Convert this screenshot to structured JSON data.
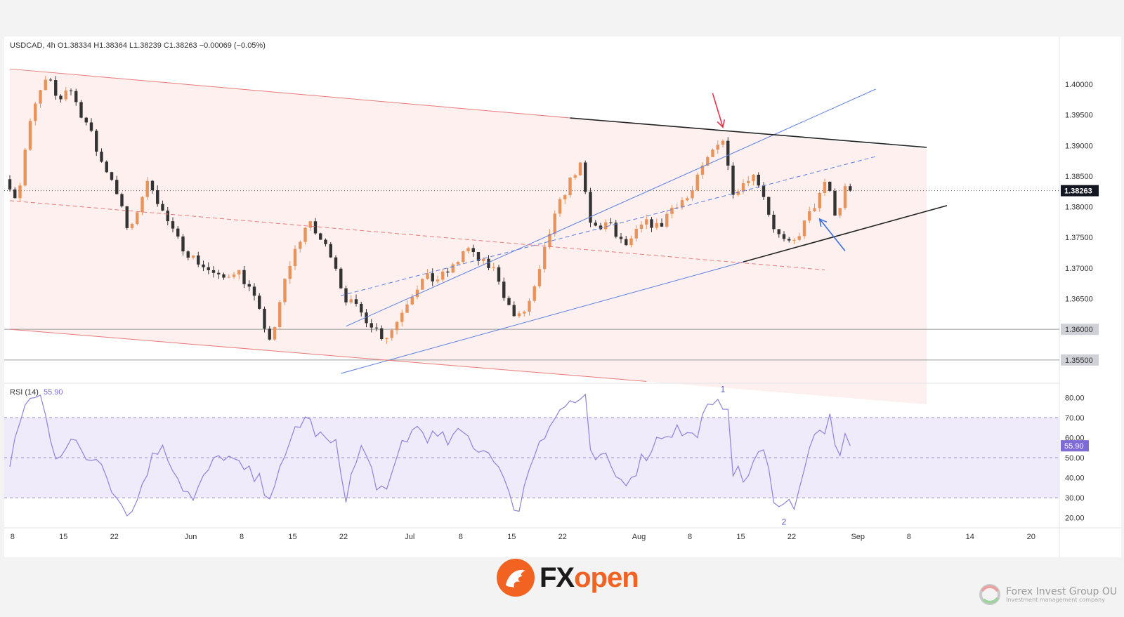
{
  "symbol_header": "USDCAD, 4h  O1.38334  H1.38364  L1.38239  C1.38263  −0.00069 (−0.05%)",
  "rsi_header": {
    "label": "RSI (14)",
    "value": "55.90"
  },
  "last_price_label": "1.38263",
  "rsi_value_label": "55.90",
  "wave_labels": [
    "1",
    "2"
  ],
  "brand": {
    "name_fx": "FX",
    "name_open": "open",
    "accent": "#f26322"
  },
  "watermark": {
    "name": "Forex Invest Group OU",
    "subtitle": "Investment management company"
  },
  "colors": {
    "up": "#e8935a",
    "down": "#333333",
    "channel": "#5b7ee0",
    "trend": "#222222",
    "downtrend": "#e87a7a",
    "rsi": "#8f82d9",
    "price_tag": "#131722",
    "rsi_tag": "#7e6bd6",
    "red_arrow": "#e8334a",
    "blue_arrow": "#3a6fe0"
  },
  "chart_data": [
    {
      "type": "candlestick",
      "symbol": "USDCAD",
      "timeframe": "4h",
      "ohlc_last": {
        "open": 1.38334,
        "high": 1.38364,
        "low": 1.38239,
        "close": 1.38263,
        "change": -0.00069,
        "change_pct": -0.05
      },
      "x_ticks": [
        "8",
        "15",
        "22",
        "Jun",
        "8",
        "15",
        "22",
        "Jul",
        "8",
        "15",
        "22",
        "Aug",
        "8",
        "15",
        "22",
        "Sep",
        "8",
        "14",
        "20"
      ],
      "y_ticks": [
        "1.40000",
        "1.39500",
        "1.39000",
        "1.38500",
        "1.38000",
        "1.37500",
        "1.37000",
        "1.36500",
        "1.36000",
        "1.35500"
      ],
      "ylim": [
        1.3512,
        1.4055
      ],
      "horizontal_levels": [
        {
          "value": 1.36,
          "label": "1.36000"
        },
        {
          "value": 1.355,
          "label": "1.35500"
        }
      ],
      "price_path": [
        [
          0,
          1.3845
        ],
        [
          2,
          1.381
        ],
        [
          4,
          1.392
        ],
        [
          6,
          1.398
        ],
        [
          8,
          1.401
        ],
        [
          10,
          1.397
        ],
        [
          12,
          1.4
        ],
        [
          14,
          1.396
        ],
        [
          16,
          1.393
        ],
        [
          18,
          1.388
        ],
        [
          21,
          1.384
        ],
        [
          24,
          1.375
        ],
        [
          26,
          1.381
        ],
        [
          28,
          1.3845
        ],
        [
          30,
          1.38
        ],
        [
          33,
          1.375
        ],
        [
          36,
          1.372
        ],
        [
          39,
          1.37
        ],
        [
          42,
          1.368
        ],
        [
          45,
          1.37
        ],
        [
          48,
          1.366
        ],
        [
          50,
          1.3615
        ],
        [
          52,
          1.3575
        ],
        [
          54,
          1.3665
        ],
        [
          56,
          1.372
        ],
        [
          59,
          1.3775
        ],
        [
          62,
          1.374
        ],
        [
          64,
          1.372
        ],
        [
          66,
          1.3655
        ],
        [
          69,
          1.363
        ],
        [
          72,
          1.3605
        ],
        [
          74,
          1.3585
        ],
        [
          76,
          1.3605
        ],
        [
          78,
          1.364
        ],
        [
          80,
          1.3665
        ],
        [
          82,
          1.3685
        ],
        [
          84,
          1.368
        ],
        [
          86,
          1.369
        ],
        [
          88,
          1.3705
        ],
        [
          90,
          1.3735
        ],
        [
          92,
          1.3715
        ],
        [
          94,
          1.3705
        ],
        [
          96,
          1.3695
        ],
        [
          98,
          1.3645
        ],
        [
          100,
          1.3615
        ],
        [
          102,
          1.3635
        ],
        [
          104,
          1.3675
        ],
        [
          106,
          1.3745
        ],
        [
          108,
          1.3795
        ],
        [
          110,
          1.3835
        ],
        [
          112,
          1.3865
        ],
        [
          113,
          1.3865
        ],
        [
          114,
          1.3775
        ],
        [
          116,
          1.3765
        ],
        [
          118,
          1.3775
        ],
        [
          120,
          1.3745
        ],
        [
          122,
          1.3735
        ],
        [
          124,
          1.3765
        ],
        [
          126,
          1.3775
        ],
        [
          128,
          1.3765
        ],
        [
          130,
          1.3795
        ],
        [
          132,
          1.381
        ],
        [
          134,
          1.3815
        ],
        [
          136,
          1.3855
        ],
        [
          138,
          1.3885
        ],
        [
          140,
          1.3915
        ],
        [
          141,
          1.3905
        ],
        [
          142,
          1.3825
        ],
        [
          144,
          1.3835
        ],
        [
          146,
          1.3855
        ],
        [
          148,
          1.3835
        ],
        [
          150,
          1.3775
        ],
        [
          152,
          1.3745
        ],
        [
          154,
          1.3735
        ],
        [
          156,
          1.3765
        ],
        [
          158,
          1.3795
        ],
        [
          160,
          1.3825
        ],
        [
          161,
          1.3845
        ],
        [
          162,
          1.3805
        ],
        [
          163,
          1.3765
        ],
        [
          164,
          1.3835
        ],
        [
          165,
          1.3826
        ]
      ],
      "annotations": [
        {
          "type": "trendline",
          "name": "upper-channel",
          "from": [
            66,
            1.3605
          ],
          "to": [
            170,
            1.3992
          ]
        },
        {
          "type": "trendline",
          "name": "lower-channel",
          "from": [
            65,
            1.3528
          ],
          "to": [
            144,
            1.371
          ]
        },
        {
          "type": "trendline",
          "name": "channel-midline",
          "dashed": true,
          "from": [
            65,
            1.3655
          ],
          "to": [
            170,
            1.3882
          ]
        },
        {
          "type": "trendline",
          "name": "resistance",
          "from": [
            110,
            1.3945
          ],
          "to": [
            180,
            1.3897
          ]
        },
        {
          "type": "trendline",
          "name": "support",
          "from": [
            144,
            1.371
          ],
          "to": [
            184,
            1.3802
          ]
        },
        {
          "type": "trendline",
          "name": "downtrend-upper",
          "from": [
            0,
            1.4025
          ],
          "to": [
            110,
            1.3945
          ]
        },
        {
          "type": "trendline",
          "name": "downtrend-lower",
          "from": [
            0,
            1.36
          ],
          "to": [
            125,
            1.3515
          ]
        },
        {
          "type": "trendline",
          "name": "downtrend-midline",
          "dashed": true,
          "from": [
            0,
            1.381
          ],
          "to": [
            160,
            1.3697
          ]
        },
        {
          "type": "arrow",
          "name": "red-arrow",
          "from": [
            138,
            1.3985
          ],
          "to": [
            140,
            1.393
          ]
        },
        {
          "type": "arrow",
          "name": "blue-arrow",
          "from": [
            164,
            1.3728
          ],
          "to": [
            159,
            1.378
          ]
        }
      ]
    },
    {
      "type": "line",
      "name": "RSI (14)",
      "y_ticks": [
        "80.00",
        "70.00",
        "60.00",
        "50.00",
        "40.00",
        "30.00",
        "20.00"
      ],
      "ylim": [
        15,
        85
      ],
      "levels": [
        70,
        50,
        30
      ],
      "last": 55.9,
      "rsi_path": [
        [
          0,
          45
        ],
        [
          3,
          78
        ],
        [
          6,
          80
        ],
        [
          9,
          52
        ],
        [
          12,
          58
        ],
        [
          15,
          50
        ],
        [
          18,
          50
        ],
        [
          21,
          30
        ],
        [
          24,
          22
        ],
        [
          27,
          45
        ],
        [
          30,
          58
        ],
        [
          33,
          40
        ],
        [
          36,
          28
        ],
        [
          39,
          44
        ],
        [
          42,
          52
        ],
        [
          45,
          45
        ],
        [
          48,
          40
        ],
        [
          51,
          33
        ],
        [
          54,
          47
        ],
        [
          56,
          65
        ],
        [
          58,
          70
        ],
        [
          61,
          60
        ],
        [
          64,
          55
        ],
        [
          66,
          32
        ],
        [
          69,
          55
        ],
        [
          72,
          38
        ],
        [
          74,
          30
        ],
        [
          77,
          58
        ],
        [
          80,
          65
        ],
        [
          83,
          60
        ],
        [
          86,
          58
        ],
        [
          89,
          62
        ],
        [
          92,
          55
        ],
        [
          95,
          52
        ],
        [
          98,
          30
        ],
        [
          100,
          25
        ],
        [
          102,
          45
        ],
        [
          104,
          60
        ],
        [
          107,
          70
        ],
        [
          110,
          78
        ],
        [
          113,
          78
        ],
        [
          114,
          50
        ],
        [
          117,
          48
        ],
        [
          120,
          38
        ],
        [
          122,
          42
        ],
        [
          125,
          52
        ],
        [
          128,
          62
        ],
        [
          131,
          64
        ],
        [
          134,
          60
        ],
        [
          137,
          73
        ],
        [
          139,
          75
        ],
        [
          140,
          78
        ],
        [
          141,
          77
        ],
        [
          142,
          45
        ],
        [
          144,
          38
        ],
        [
          146,
          48
        ],
        [
          148,
          52
        ],
        [
          150,
          32
        ],
        [
          152,
          26
        ],
        [
          154,
          28
        ],
        [
          156,
          45
        ],
        [
          158,
          60
        ],
        [
          160,
          65
        ],
        [
          161,
          68
        ],
        [
          162,
          52
        ],
        [
          163,
          50
        ],
        [
          164,
          60
        ],
        [
          165,
          55.9
        ]
      ],
      "wave_marks": [
        {
          "label": "1",
          "x": 140,
          "value": 82
        },
        {
          "label": "2",
          "x": 152,
          "value": 20
        }
      ]
    }
  ]
}
